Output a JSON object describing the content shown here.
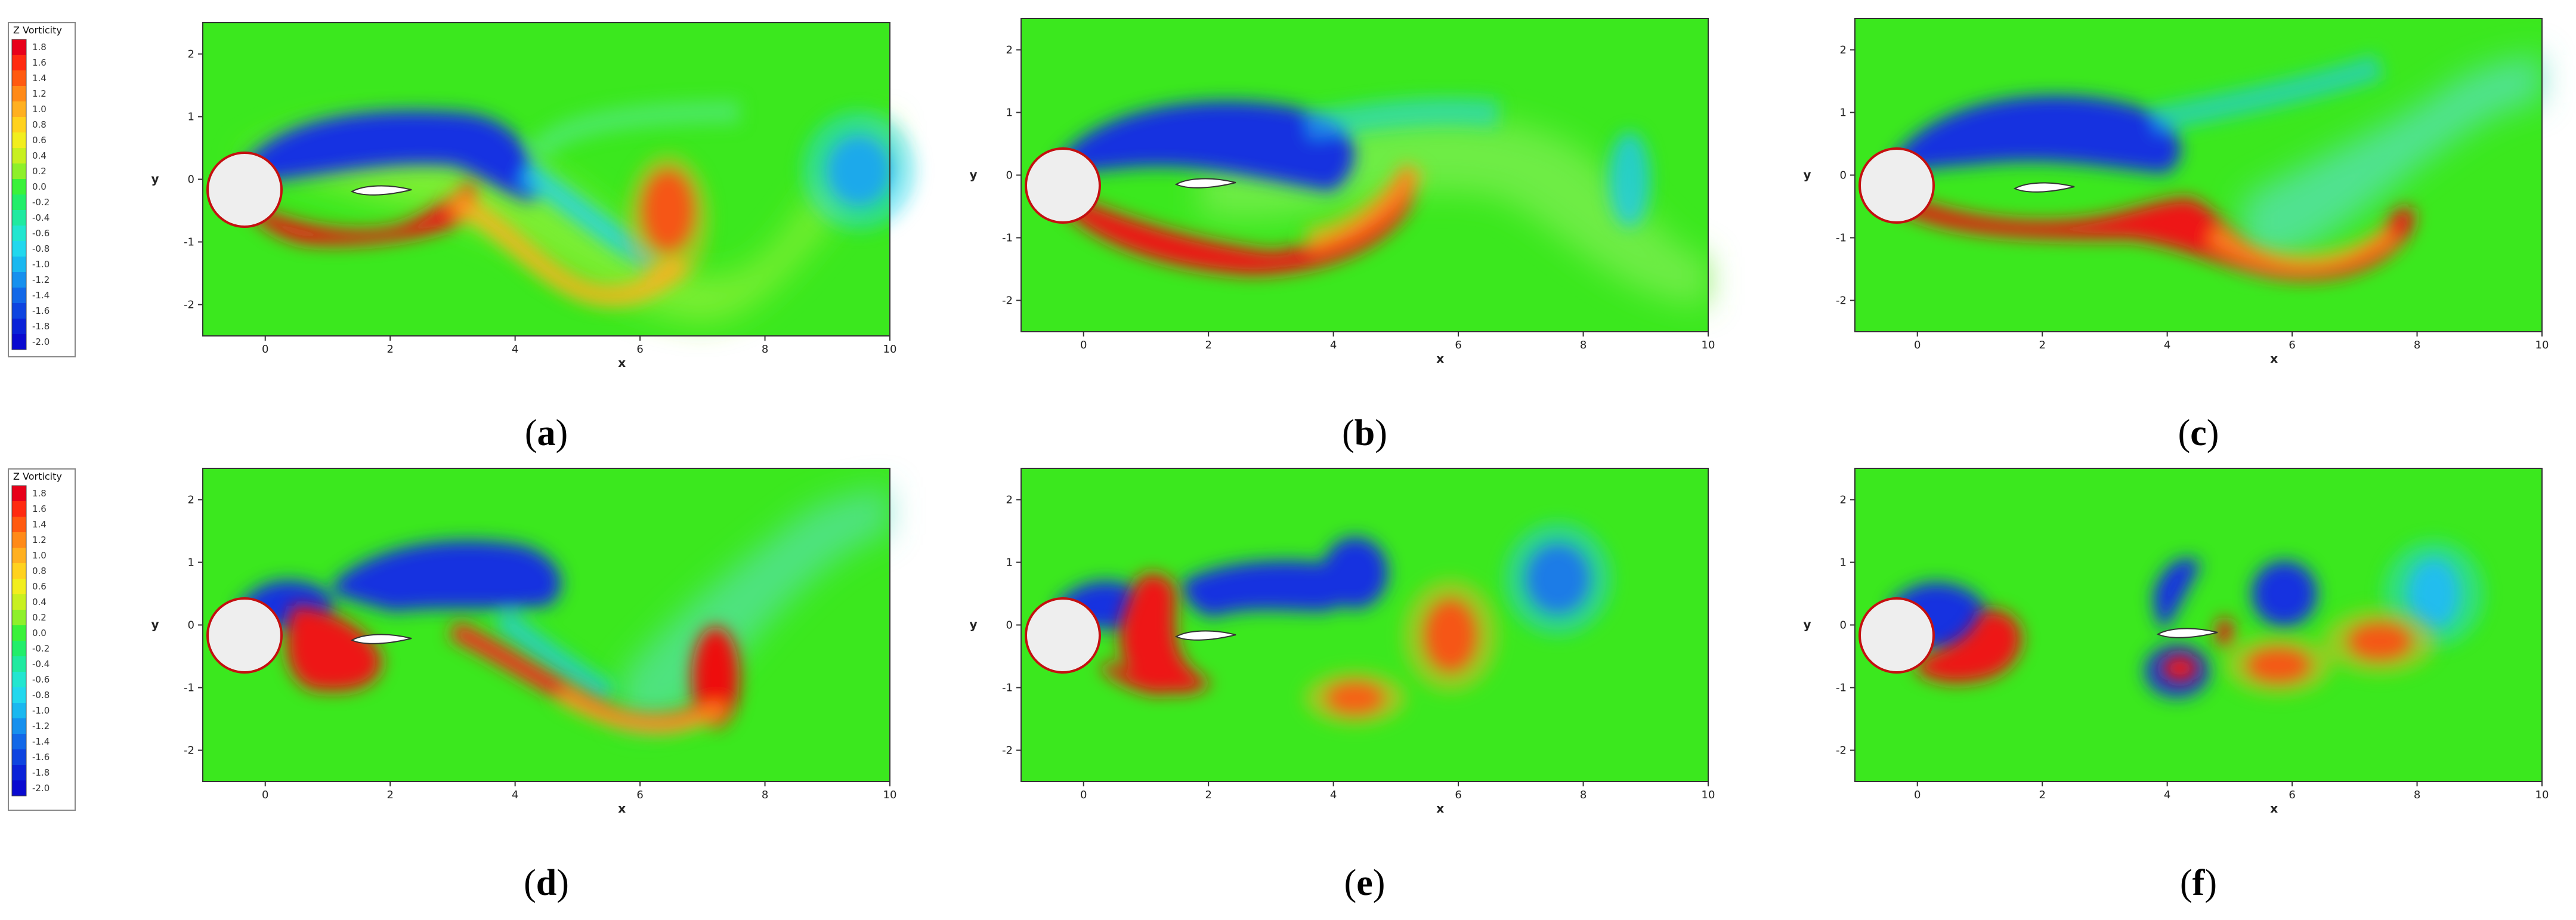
{
  "legend": {
    "title": "Z Vorticity",
    "levels": [
      "1.8",
      "1.6",
      "1.4",
      "1.2",
      "1.0",
      "0.8",
      "0.6",
      "0.4",
      "0.2",
      "0.0",
      "-0.2",
      "-0.4",
      "-0.6",
      "-0.8",
      "-1.0",
      "-1.2",
      "-1.4",
      "-1.6",
      "-1.8",
      "-2.0"
    ],
    "colors": [
      "#e8001a",
      "#ff2a10",
      "#ff5a10",
      "#ff8a18",
      "#ffb020",
      "#ffd21e",
      "#f2ee1e",
      "#c8f020",
      "#8ef02a",
      "#3af23a",
      "#22ee6a",
      "#20eaa0",
      "#22e6d0",
      "#22d8ee",
      "#1ab8f0",
      "#1690ee",
      "#1268e8",
      "#0e44e0",
      "#0a22d8",
      "#0a0ad0"
    ]
  },
  "axes": {
    "x_ticks": [
      "0",
      "2",
      "4",
      "6",
      "8",
      "10"
    ],
    "y_ticks": [
      "2",
      "1",
      "0",
      "-1",
      "-2"
    ],
    "x_label": "x",
    "y_label": "y"
  },
  "panels": [
    {
      "id": "a",
      "caption": "a"
    },
    {
      "id": "b",
      "caption": "b"
    },
    {
      "id": "c",
      "caption": "c"
    },
    {
      "id": "d",
      "caption": "d"
    },
    {
      "id": "e",
      "caption": "e"
    },
    {
      "id": "f",
      "caption": "f"
    }
  ],
  "colors": {
    "background_field": "#3be81e",
    "positive_core": "#ee1010",
    "negative_core": "#1430e0"
  }
}
